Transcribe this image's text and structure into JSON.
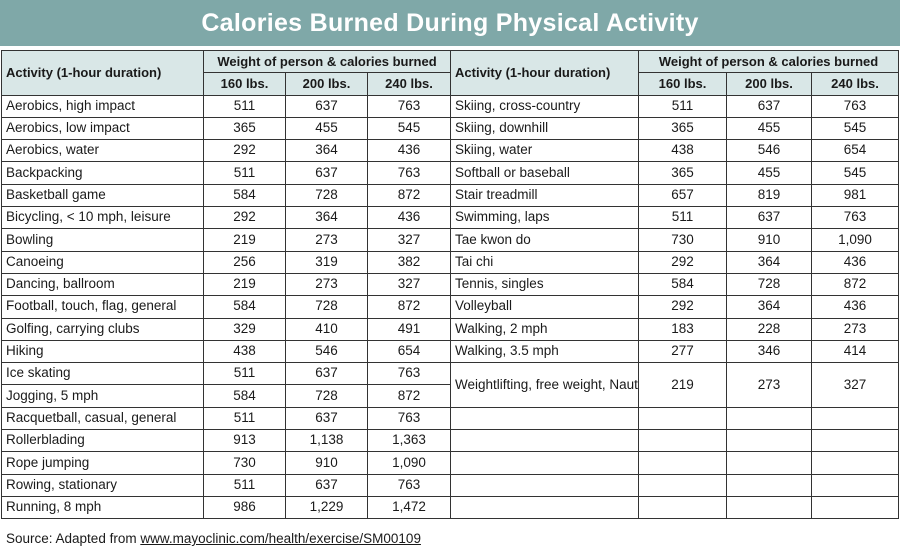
{
  "title": "Calories Burned During Physical Activity",
  "headers": {
    "activity": "Activity (1-hour duration)",
    "group": "Weight of person & calories burned",
    "weights": [
      "160 lbs.",
      "200 lbs.",
      "240 lbs."
    ]
  },
  "left_rows": [
    {
      "activity": "Aerobics, high impact",
      "w160": "511",
      "w200": "637",
      "w240": "763"
    },
    {
      "activity": "Aerobics, low impact",
      "w160": "365",
      "w200": "455",
      "w240": "545"
    },
    {
      "activity": "Aerobics, water",
      "w160": "292",
      "w200": "364",
      "w240": "436"
    },
    {
      "activity": "Backpacking",
      "w160": "511",
      "w200": "637",
      "w240": "763"
    },
    {
      "activity": "Basketball game",
      "w160": "584",
      "w200": "728",
      "w240": "872"
    },
    {
      "activity": "Bicycling, < 10 mph, leisure",
      "w160": "292",
      "w200": "364",
      "w240": "436"
    },
    {
      "activity": "Bowling",
      "w160": "219",
      "w200": "273",
      "w240": "327"
    },
    {
      "activity": "Canoeing",
      "w160": "256",
      "w200": "319",
      "w240": "382"
    },
    {
      "activity": "Dancing, ballroom",
      "w160": "219",
      "w200": "273",
      "w240": "327"
    },
    {
      "activity": "Football, touch, flag, general",
      "w160": "584",
      "w200": "728",
      "w240": "872"
    },
    {
      "activity": "Golfing, carrying clubs",
      "w160": "329",
      "w200": "410",
      "w240": "491"
    },
    {
      "activity": "Hiking",
      "w160": "438",
      "w200": "546",
      "w240": "654"
    },
    {
      "activity": "Ice skating",
      "w160": "511",
      "w200": "637",
      "w240": "763"
    },
    {
      "activity": "Jogging, 5 mph",
      "w160": "584",
      "w200": "728",
      "w240": "872"
    },
    {
      "activity": "Racquetball, casual, general",
      "w160": "511",
      "w200": "637",
      "w240": "763"
    },
    {
      "activity": "Rollerblading",
      "w160": "913",
      "w200": "1,138",
      "w240": "1,363"
    },
    {
      "activity": "Rope jumping",
      "w160": "730",
      "w200": "910",
      "w240": "1,090"
    },
    {
      "activity": "Rowing, stationary",
      "w160": "511",
      "w200": "637",
      "w240": "763"
    },
    {
      "activity": "Running, 8 mph",
      "w160": "986",
      "w200": "1,229",
      "w240": "1,472"
    }
  ],
  "right_rows": [
    {
      "activity": "Skiing, cross-country",
      "w160": "511",
      "w200": "637",
      "w240": "763"
    },
    {
      "activity": "Skiing, downhill",
      "w160": "365",
      "w200": "455",
      "w240": "545"
    },
    {
      "activity": "Skiing, water",
      "w160": "438",
      "w200": "546",
      "w240": "654"
    },
    {
      "activity": "Softball or baseball",
      "w160": "365",
      "w200": "455",
      "w240": "545"
    },
    {
      "activity": "Stair treadmill",
      "w160": "657",
      "w200": "819",
      "w240": "981"
    },
    {
      "activity": "Swimming, laps",
      "w160": "511",
      "w200": "637",
      "w240": "763"
    },
    {
      "activity": "Tae kwon do",
      "w160": "730",
      "w200": "910",
      "w240": "1,090"
    },
    {
      "activity": "Tai chi",
      "w160": "292",
      "w200": "364",
      "w240": "436"
    },
    {
      "activity": "Tennis, singles",
      "w160": "584",
      "w200": "728",
      "w240": "872"
    },
    {
      "activity": "Volleyball",
      "w160": "292",
      "w200": "364",
      "w240": "436"
    },
    {
      "activity": "Walking, 2 mph",
      "w160": "183",
      "w200": "228",
      "w240": "273"
    },
    {
      "activity": "Walking, 3.5 mph",
      "w160": "277",
      "w200": "346",
      "w240": "414"
    },
    {
      "activity": "Weightlifting, free weight, Nautilus or universal type",
      "w160": "219",
      "w200": "273",
      "w240": "327"
    }
  ],
  "source": {
    "prefix": "Source: Adapted from ",
    "link": "www.mayoclinic.com/health/exercise/SM00109"
  },
  "colors": {
    "title_bar": "#7fa8a8",
    "header_fill": "#d9e7e7",
    "border": "#333333"
  }
}
